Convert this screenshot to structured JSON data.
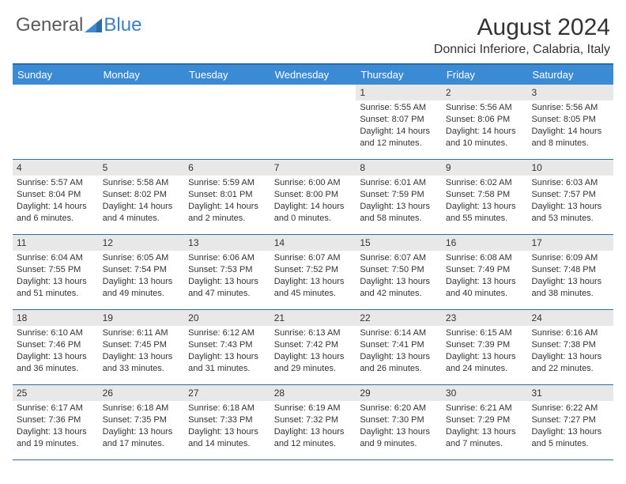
{
  "logo": {
    "text1": "General",
    "text2": "Blue"
  },
  "title": "August 2024",
  "location": "Donnici Inferiore, Calabria, Italy",
  "colors": {
    "header_bg": "#3b8bd4",
    "border": "#2d6ca2",
    "daynum_bg": "#e8e8e8",
    "text": "#333333",
    "logo_gray": "#5a5a5a",
    "logo_blue": "#3b7fc4"
  },
  "weekdays": [
    "Sunday",
    "Monday",
    "Tuesday",
    "Wednesday",
    "Thursday",
    "Friday",
    "Saturday"
  ],
  "weeks": [
    [
      {
        "n": "",
        "sr": "",
        "ss": "",
        "dl": ""
      },
      {
        "n": "",
        "sr": "",
        "ss": "",
        "dl": ""
      },
      {
        "n": "",
        "sr": "",
        "ss": "",
        "dl": ""
      },
      {
        "n": "",
        "sr": "",
        "ss": "",
        "dl": ""
      },
      {
        "n": "1",
        "sr": "Sunrise: 5:55 AM",
        "ss": "Sunset: 8:07 PM",
        "dl": "Daylight: 14 hours and 12 minutes."
      },
      {
        "n": "2",
        "sr": "Sunrise: 5:56 AM",
        "ss": "Sunset: 8:06 PM",
        "dl": "Daylight: 14 hours and 10 minutes."
      },
      {
        "n": "3",
        "sr": "Sunrise: 5:56 AM",
        "ss": "Sunset: 8:05 PM",
        "dl": "Daylight: 14 hours and 8 minutes."
      }
    ],
    [
      {
        "n": "4",
        "sr": "Sunrise: 5:57 AM",
        "ss": "Sunset: 8:04 PM",
        "dl": "Daylight: 14 hours and 6 minutes."
      },
      {
        "n": "5",
        "sr": "Sunrise: 5:58 AM",
        "ss": "Sunset: 8:02 PM",
        "dl": "Daylight: 14 hours and 4 minutes."
      },
      {
        "n": "6",
        "sr": "Sunrise: 5:59 AM",
        "ss": "Sunset: 8:01 PM",
        "dl": "Daylight: 14 hours and 2 minutes."
      },
      {
        "n": "7",
        "sr": "Sunrise: 6:00 AM",
        "ss": "Sunset: 8:00 PM",
        "dl": "Daylight: 14 hours and 0 minutes."
      },
      {
        "n": "8",
        "sr": "Sunrise: 6:01 AM",
        "ss": "Sunset: 7:59 PM",
        "dl": "Daylight: 13 hours and 58 minutes."
      },
      {
        "n": "9",
        "sr": "Sunrise: 6:02 AM",
        "ss": "Sunset: 7:58 PM",
        "dl": "Daylight: 13 hours and 55 minutes."
      },
      {
        "n": "10",
        "sr": "Sunrise: 6:03 AM",
        "ss": "Sunset: 7:57 PM",
        "dl": "Daylight: 13 hours and 53 minutes."
      }
    ],
    [
      {
        "n": "11",
        "sr": "Sunrise: 6:04 AM",
        "ss": "Sunset: 7:55 PM",
        "dl": "Daylight: 13 hours and 51 minutes."
      },
      {
        "n": "12",
        "sr": "Sunrise: 6:05 AM",
        "ss": "Sunset: 7:54 PM",
        "dl": "Daylight: 13 hours and 49 minutes."
      },
      {
        "n": "13",
        "sr": "Sunrise: 6:06 AM",
        "ss": "Sunset: 7:53 PM",
        "dl": "Daylight: 13 hours and 47 minutes."
      },
      {
        "n": "14",
        "sr": "Sunrise: 6:07 AM",
        "ss": "Sunset: 7:52 PM",
        "dl": "Daylight: 13 hours and 45 minutes."
      },
      {
        "n": "15",
        "sr": "Sunrise: 6:07 AM",
        "ss": "Sunset: 7:50 PM",
        "dl": "Daylight: 13 hours and 42 minutes."
      },
      {
        "n": "16",
        "sr": "Sunrise: 6:08 AM",
        "ss": "Sunset: 7:49 PM",
        "dl": "Daylight: 13 hours and 40 minutes."
      },
      {
        "n": "17",
        "sr": "Sunrise: 6:09 AM",
        "ss": "Sunset: 7:48 PM",
        "dl": "Daylight: 13 hours and 38 minutes."
      }
    ],
    [
      {
        "n": "18",
        "sr": "Sunrise: 6:10 AM",
        "ss": "Sunset: 7:46 PM",
        "dl": "Daylight: 13 hours and 36 minutes."
      },
      {
        "n": "19",
        "sr": "Sunrise: 6:11 AM",
        "ss": "Sunset: 7:45 PM",
        "dl": "Daylight: 13 hours and 33 minutes."
      },
      {
        "n": "20",
        "sr": "Sunrise: 6:12 AM",
        "ss": "Sunset: 7:43 PM",
        "dl": "Daylight: 13 hours and 31 minutes."
      },
      {
        "n": "21",
        "sr": "Sunrise: 6:13 AM",
        "ss": "Sunset: 7:42 PM",
        "dl": "Daylight: 13 hours and 29 minutes."
      },
      {
        "n": "22",
        "sr": "Sunrise: 6:14 AM",
        "ss": "Sunset: 7:41 PM",
        "dl": "Daylight: 13 hours and 26 minutes."
      },
      {
        "n": "23",
        "sr": "Sunrise: 6:15 AM",
        "ss": "Sunset: 7:39 PM",
        "dl": "Daylight: 13 hours and 24 minutes."
      },
      {
        "n": "24",
        "sr": "Sunrise: 6:16 AM",
        "ss": "Sunset: 7:38 PM",
        "dl": "Daylight: 13 hours and 22 minutes."
      }
    ],
    [
      {
        "n": "25",
        "sr": "Sunrise: 6:17 AM",
        "ss": "Sunset: 7:36 PM",
        "dl": "Daylight: 13 hours and 19 minutes."
      },
      {
        "n": "26",
        "sr": "Sunrise: 6:18 AM",
        "ss": "Sunset: 7:35 PM",
        "dl": "Daylight: 13 hours and 17 minutes."
      },
      {
        "n": "27",
        "sr": "Sunrise: 6:18 AM",
        "ss": "Sunset: 7:33 PM",
        "dl": "Daylight: 13 hours and 14 minutes."
      },
      {
        "n": "28",
        "sr": "Sunrise: 6:19 AM",
        "ss": "Sunset: 7:32 PM",
        "dl": "Daylight: 13 hours and 12 minutes."
      },
      {
        "n": "29",
        "sr": "Sunrise: 6:20 AM",
        "ss": "Sunset: 7:30 PM",
        "dl": "Daylight: 13 hours and 9 minutes."
      },
      {
        "n": "30",
        "sr": "Sunrise: 6:21 AM",
        "ss": "Sunset: 7:29 PM",
        "dl": "Daylight: 13 hours and 7 minutes."
      },
      {
        "n": "31",
        "sr": "Sunrise: 6:22 AM",
        "ss": "Sunset: 7:27 PM",
        "dl": "Daylight: 13 hours and 5 minutes."
      }
    ]
  ]
}
